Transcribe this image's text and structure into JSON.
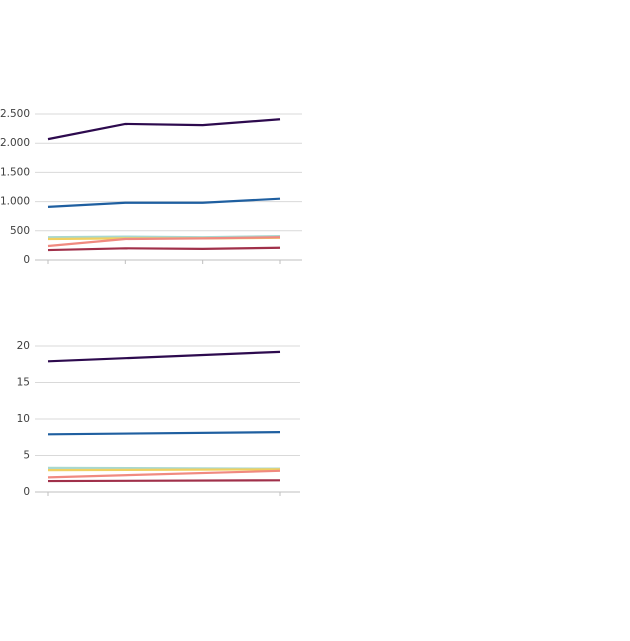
{
  "chart_data": [
    {
      "type": "line",
      "categories": [
        null,
        null,
        null,
        null
      ],
      "ylim": [
        0,
        2500
      ],
      "yticks": [
        0,
        500,
        {
          "value": 1000,
          "label": "1.000"
        },
        {
          "value": 1500,
          "label": "1.500"
        },
        {
          "value": 2000,
          "label": "2.000"
        },
        {
          "value": 2500,
          "label": "2.500"
        }
      ],
      "grid": true,
      "series": [
        {
          "color": "#a8d8d0",
          "values": [
            390,
            400,
            390,
            410
          ]
        },
        {
          "color": "#f0d060",
          "values": [
            360,
            370,
            370,
            380
          ]
        },
        {
          "color": "#f08a80",
          "values": [
            240,
            360,
            370,
            390
          ]
        },
        {
          "color": "#a0304a",
          "values": [
            170,
            200,
            190,
            210
          ]
        },
        {
          "color": "#1f5fa0",
          "values": [
            910,
            980,
            980,
            1050
          ]
        },
        {
          "color": "#2d0a4e",
          "values": [
            2070,
            2330,
            2310,
            2410
          ]
        }
      ]
    },
    {
      "type": "line",
      "categories": [
        null,
        null
      ],
      "ylim": [
        0,
        20
      ],
      "yticks": [
        0,
        5,
        10,
        15,
        20
      ],
      "grid": true,
      "series": [
        {
          "color": "#a8d8d0",
          "values": [
            3.3,
            3.2
          ]
        },
        {
          "color": "#f0d060",
          "values": [
            3.0,
            3.1
          ]
        },
        {
          "color": "#f08a80",
          "values": [
            2.0,
            2.9
          ]
        },
        {
          "color": "#a0304a",
          "values": [
            1.5,
            1.6
          ]
        },
        {
          "color": "#1f5fa0",
          "values": [
            7.9,
            8.2
          ]
        },
        {
          "color": "#2d0a4e",
          "values": [
            17.9,
            19.2
          ]
        }
      ]
    }
  ]
}
